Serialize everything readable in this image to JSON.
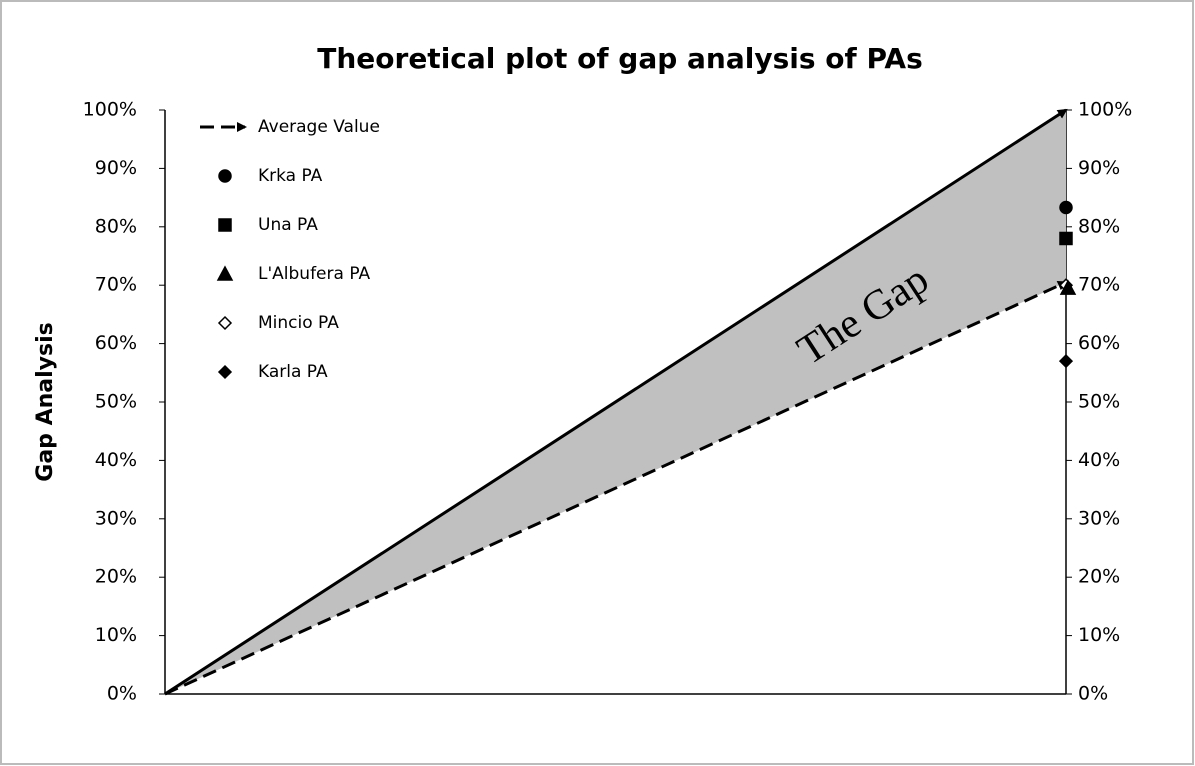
{
  "chart_data": {
    "type": "line",
    "title": "Theoretical plot of gap analysis of PAs",
    "y_label": "Gap Analysis",
    "annotation": "The Gap",
    "categories": [
      null,
      null
    ],
    "series": [
      {
        "color": "#000000",
        "style": "solid",
        "values": [
          0,
          100
        ]
      },
      {
        "name": "Average Value",
        "color": "#000000",
        "style": "dashed",
        "values": [
          0,
          70.5
        ]
      }
    ],
    "area_fill": "#c0c0c0",
    "points": [
      {
        "name": "Krka PA",
        "marker": "circle",
        "color": "#000000",
        "value": 83.3
      },
      {
        "name": "Una PA",
        "marker": "square",
        "color": "#000000",
        "value": 78
      },
      {
        "name": "L'Albufera PA",
        "marker": "triangle",
        "color": "#000000",
        "value": 69.5
      },
      {
        "name": "Mincio PA",
        "marker": "diamond-open",
        "color": "#000000",
        "value": 70
      },
      {
        "name": "Karla PA",
        "marker": "diamond",
        "color": "#000000",
        "value": 57
      }
    ],
    "ylim": [
      0,
      100
    ],
    "yticks": [
      {
        "value": 0,
        "label": "0%"
      },
      {
        "value": 10,
        "label": "10%"
      },
      {
        "value": 20,
        "label": "20%"
      },
      {
        "value": 30,
        "label": "30%"
      },
      {
        "value": 40,
        "label": "40%"
      },
      {
        "value": 50,
        "label": "50%"
      },
      {
        "value": 60,
        "label": "60%"
      },
      {
        "value": 70,
        "label": "70%"
      },
      {
        "value": 80,
        "label": "80%"
      },
      {
        "value": 90,
        "label": "90%"
      },
      {
        "value": 100,
        "label": "100%"
      }
    ],
    "y2lim": [
      0,
      100
    ],
    "y2ticks": [
      {
        "value": 0,
        "label": "0%"
      },
      {
        "value": 10,
        "label": "10%"
      },
      {
        "value": 20,
        "label": "20%"
      },
      {
        "value": 30,
        "label": "30%"
      },
      {
        "value": 40,
        "label": "40%"
      },
      {
        "value": 50,
        "label": "50%"
      },
      {
        "value": 60,
        "label": "60%"
      },
      {
        "value": 70,
        "label": "70%"
      },
      {
        "value": 80,
        "label": "80%"
      },
      {
        "value": 90,
        "label": "90%"
      },
      {
        "value": 100,
        "label": "100%"
      }
    ],
    "grid": false,
    "legend": "top-left"
  }
}
